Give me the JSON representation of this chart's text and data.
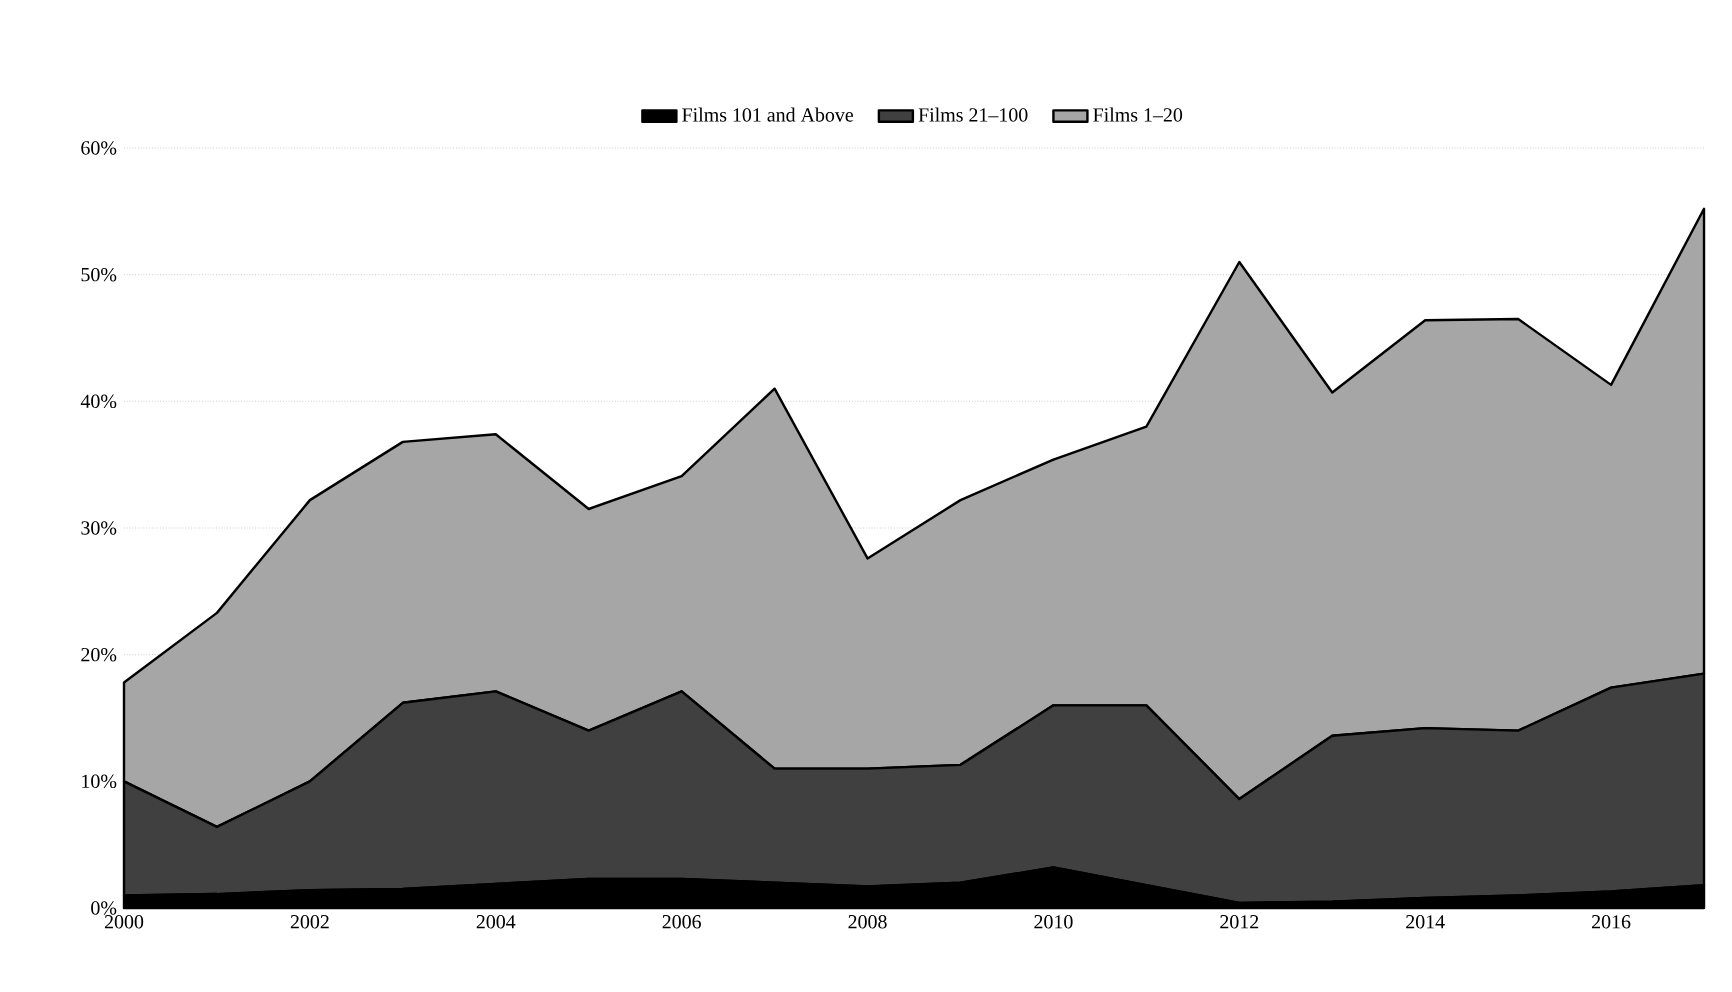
{
  "chart_data": {
    "type": "area",
    "stacked": true,
    "x": [
      2000,
      2001,
      2002,
      2003,
      2004,
      2005,
      2006,
      2007,
      2008,
      2009,
      2010,
      2011,
      2012,
      2013,
      2014,
      2015,
      2016,
      2017
    ],
    "series": [
      {
        "name": "Films 101 and Above",
        "color": "#000000",
        "values": [
          1.0,
          1.1,
          1.4,
          1.5,
          1.9,
          2.3,
          2.3,
          2.0,
          1.7,
          2.0,
          3.2,
          1.8,
          0.4,
          0.5,
          0.8,
          1.0,
          1.3,
          1.8
        ]
      },
      {
        "name": "Films 21–100",
        "color": "#404040",
        "values": [
          9.0,
          5.3,
          8.6,
          14.7,
          15.2,
          11.7,
          14.8,
          9.0,
          9.3,
          9.3,
          12.8,
          14.2,
          8.2,
          13.1,
          13.4,
          13.0,
          16.1,
          16.7
        ]
      },
      {
        "name": "Films 1–20",
        "color": "#a6a6a6",
        "values": [
          7.8,
          16.9,
          22.2,
          20.6,
          20.3,
          17.5,
          17.0,
          30.0,
          16.6,
          20.9,
          19.4,
          22.0,
          42.4,
          27.1,
          32.2,
          32.5,
          23.9,
          36.7
        ]
      }
    ],
    "xlim": [
      2000,
      2017
    ],
    "xticks": [
      2000,
      2002,
      2004,
      2006,
      2008,
      2010,
      2012,
      2014,
      2016
    ],
    "ylim": [
      0,
      60
    ],
    "yticks": [
      {
        "value": 0,
        "label": "0%"
      },
      {
        "value": 10,
        "label": "10%"
      },
      {
        "value": 20,
        "label": "20%"
      },
      {
        "value": 30,
        "label": "30%"
      },
      {
        "value": 40,
        "label": "40%"
      },
      {
        "value": 50,
        "label": "50%"
      },
      {
        "value": 60,
        "label": "60%"
      }
    ],
    "grid": "y",
    "legend": "top"
  }
}
